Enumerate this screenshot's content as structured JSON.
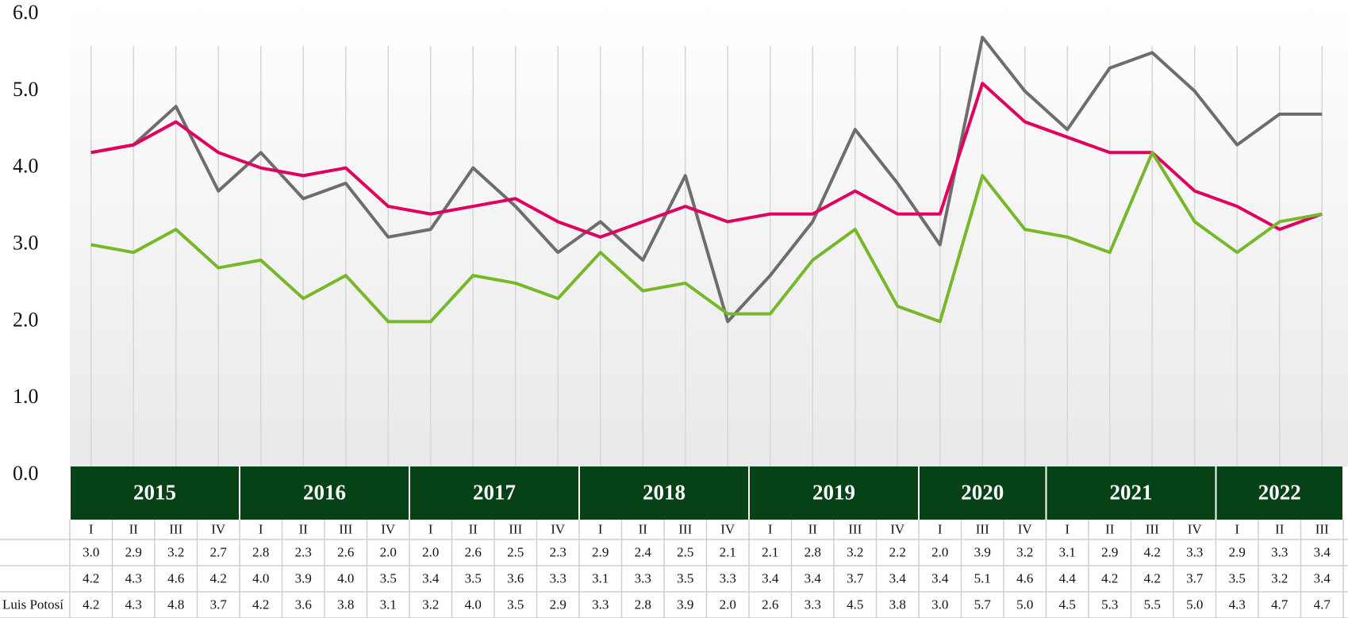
{
  "chart_data": {
    "type": "line",
    "years": [
      {
        "year": "2015",
        "quarters": [
          "I",
          "II",
          "III",
          "IV"
        ]
      },
      {
        "year": "2016",
        "quarters": [
          "I",
          "II",
          "III",
          "IV"
        ]
      },
      {
        "year": "2017",
        "quarters": [
          "I",
          "II",
          "III",
          "IV"
        ]
      },
      {
        "year": "2018",
        "quarters": [
          "I",
          "II",
          "III",
          "IV"
        ]
      },
      {
        "year": "2019",
        "quarters": [
          "I",
          "II",
          "III",
          "IV"
        ]
      },
      {
        "year": "2020",
        "quarters": [
          "I",
          "III",
          "IV"
        ]
      },
      {
        "year": "2021",
        "quarters": [
          "I",
          "II",
          "III",
          "IV"
        ]
      },
      {
        "year": "2022",
        "quarters": [
          "I",
          "II",
          "III"
        ]
      }
    ],
    "series": [
      {
        "color": "#76b82a",
        "values": [
          3.0,
          2.9,
          3.2,
          2.7,
          2.8,
          2.3,
          2.6,
          2.0,
          2.0,
          2.6,
          2.5,
          2.3,
          2.9,
          2.4,
          2.5,
          2.1,
          2.1,
          2.8,
          3.2,
          2.2,
          2.0,
          3.9,
          3.2,
          3.1,
          2.9,
          4.2,
          3.3,
          2.9,
          3.3,
          3.4
        ],
        "value_labels": [
          "3.0",
          "2.9",
          "3.2",
          "2.7",
          "2.8",
          "2.3",
          "2.6",
          "2.0",
          "2.0",
          "2.6",
          "2.5",
          "2.3",
          "2.9",
          "2.4",
          "2.5",
          "2.1",
          "2.1",
          "2.8",
          "3.2",
          "2.2",
          "2.0",
          "3.9",
          "3.2",
          "3.1",
          "2.9",
          "4.2",
          "3.3",
          "2.9",
          "3.3",
          "3.4"
        ]
      },
      {
        "color": "#e0005f",
        "values": [
          4.2,
          4.3,
          4.6,
          4.2,
          4.0,
          3.9,
          4.0,
          3.5,
          3.4,
          3.5,
          3.6,
          3.3,
          3.1,
          3.3,
          3.5,
          3.3,
          3.4,
          3.4,
          3.7,
          3.4,
          3.4,
          5.1,
          4.6,
          4.4,
          4.2,
          4.2,
          3.7,
          3.5,
          3.2,
          3.4
        ],
        "value_labels": [
          "4.2",
          "4.3",
          "4.6",
          "4.2",
          "4.0",
          "3.9",
          "4.0",
          "3.5",
          "3.4",
          "3.5",
          "3.6",
          "3.3",
          "3.1",
          "3.3",
          "3.5",
          "3.3",
          "3.4",
          "3.4",
          "3.7",
          "3.4",
          "3.4",
          "5.1",
          "4.6",
          "4.4",
          "4.2",
          "4.2",
          "3.7",
          "3.5",
          "3.2",
          "3.4"
        ]
      },
      {
        "name": "Luis Potosí",
        "color": "#6d6d6d",
        "values": [
          4.2,
          4.3,
          4.8,
          3.7,
          4.2,
          3.6,
          3.8,
          3.1,
          3.2,
          4.0,
          3.5,
          2.9,
          3.3,
          2.8,
          3.9,
          2.0,
          2.6,
          3.3,
          4.5,
          3.8,
          3.0,
          5.7,
          5.0,
          4.5,
          5.3,
          5.5,
          5.0,
          4.3,
          4.7,
          4.7
        ],
        "value_labels": [
          "4.2",
          "4.3",
          "4.8",
          "3.7",
          "4.2",
          "3.6",
          "3.8",
          "3.1",
          "3.2",
          "4.0",
          "3.5",
          "2.9",
          "3.3",
          "2.8",
          "3.9",
          "2.0",
          "2.6",
          "3.3",
          "4.5",
          "3.8",
          "3.0",
          "5.7",
          "5.0",
          "4.5",
          "5.3",
          "5.5",
          "5.0",
          "4.3",
          "4.7",
          "4.7"
        ]
      }
    ],
    "ylim": [
      0,
      6
    ],
    "yticks": [
      {
        "value": 0,
        "label": "0.0"
      },
      {
        "value": 1,
        "label": "1.0"
      },
      {
        "value": 2,
        "label": "2.0"
      },
      {
        "value": 3,
        "label": "3.0"
      },
      {
        "value": 4,
        "label": "4.0"
      },
      {
        "value": 5,
        "label": "5.0"
      },
      {
        "value": 6,
        "label": "6.0"
      }
    ],
    "band_color": "#064216"
  }
}
